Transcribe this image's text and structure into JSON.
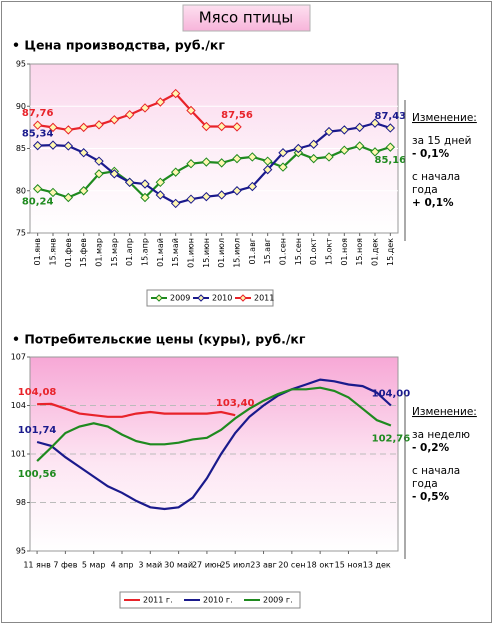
{
  "title": "Мясо птицы",
  "chart_data": [
    {
      "type": "line",
      "title": "• Цена производства, руб./кг",
      "categories": [
        "01.янв",
        "15.янв",
        "01.фев",
        "15.фев",
        "01.мар",
        "15.мар",
        "01.апр",
        "15.апр",
        "01.май",
        "15.май",
        "01.июн",
        "15.июн",
        "01.июл",
        "15.июл",
        "01.авг",
        "15.авг",
        "01.сен",
        "15.сен",
        "01.окт",
        "15.окт",
        "01.ноя",
        "15.ноя",
        "01.дек",
        "15.дек"
      ],
      "series": [
        {
          "name": "2009",
          "color": "#1f8a1f",
          "values": [
            80.24,
            79.8,
            79.2,
            80,
            82,
            82.3,
            81,
            79.2,
            81,
            82.2,
            83.2,
            83.4,
            83.3,
            83.8,
            84,
            83.5,
            82.8,
            84.5,
            83.8,
            84,
            84.8,
            85.3,
            84.6,
            85.16
          ],
          "value_labels": [
            "80,24",
            null,
            null,
            null,
            null,
            null,
            null,
            null,
            null,
            null,
            null,
            null,
            null,
            null,
            null,
            null,
            null,
            null,
            null,
            null,
            null,
            null,
            null,
            "85,16"
          ]
        },
        {
          "name": "2010",
          "color": "#1a1a8c",
          "values": [
            85.34,
            85.4,
            85.3,
            84.5,
            83.5,
            82,
            81,
            80.8,
            79.5,
            78.5,
            79,
            79.3,
            79.5,
            80,
            80.5,
            82.5,
            84.5,
            85,
            85.5,
            87,
            87.2,
            87.5,
            88,
            87.43
          ],
          "value_labels": [
            "85,34",
            null,
            null,
            null,
            null,
            null,
            null,
            null,
            null,
            null,
            null,
            null,
            null,
            null,
            null,
            null,
            null,
            null,
            null,
            null,
            null,
            null,
            null,
            "87,43"
          ]
        },
        {
          "name": "2011",
          "color": "#e8232a",
          "values": [
            87.76,
            87.5,
            87.2,
            87.5,
            87.8,
            88.4,
            89,
            89.8,
            90.5,
            91.5,
            89.5,
            87.6,
            87.6,
            87.56,
            null,
            null,
            null,
            null,
            null,
            null,
            null,
            null,
            null,
            null
          ],
          "value_labels": [
            "87,76",
            null,
            null,
            null,
            null,
            null,
            null,
            null,
            null,
            null,
            null,
            null,
            null,
            "87,56",
            null,
            null,
            null,
            null,
            null,
            null,
            null,
            null,
            null,
            null
          ]
        }
      ],
      "ylim": [
        75,
        95
      ],
      "yticks": [
        75,
        80,
        85,
        90,
        95
      ],
      "grid": true,
      "markers": true,
      "annotations": [
        [
          "Изменение:"
        ],
        [
          "за 15 дней",
          "- 0,1%"
        ],
        [
          "с начала",
          "года",
          "+ 0,1%"
        ]
      ]
    },
    {
      "type": "line",
      "title": "• Потребительские цены (куры), руб./кг",
      "categories": [
        "11 янв",
        null,
        "7 фев",
        null,
        "5 мар",
        null,
        "4 апр",
        null,
        "3 май",
        null,
        "30 май",
        null,
        "27 июн",
        null,
        "25 июл",
        null,
        "23 авг",
        null,
        "20 сен",
        null,
        "18 окт",
        null,
        "15 ноя",
        null,
        "13 дек",
        null
      ],
      "series": [
        {
          "name": "2011 г.",
          "color": "#e8232a",
          "values": [
            104.08,
            104.1,
            103.8,
            103.5,
            103.4,
            103.3,
            103.3,
            103.5,
            103.6,
            103.5,
            103.5,
            103.5,
            103.5,
            103.6,
            103.4,
            null,
            null,
            null,
            null,
            null,
            null,
            null,
            null,
            null,
            null,
            null
          ],
          "value_labels": [
            "104,08",
            null,
            null,
            null,
            null,
            null,
            null,
            null,
            null,
            null,
            null,
            null,
            null,
            null,
            "103,40",
            null,
            null,
            null,
            null,
            null,
            null,
            null,
            null,
            null,
            null,
            null
          ]
        },
        {
          "name": "2010 г.",
          "color": "#1a1a8c",
          "values": [
            101.74,
            101.5,
            100.8,
            100.2,
            99.6,
            99,
            98.6,
            98.1,
            97.7,
            97.6,
            97.7,
            98.3,
            99.5,
            101,
            102.3,
            103.3,
            104,
            104.6,
            105,
            105.3,
            105.6,
            105.5,
            105.3,
            105.2,
            104.8,
            104
          ],
          "value_labels": [
            "101,74",
            null,
            null,
            null,
            null,
            null,
            null,
            null,
            null,
            null,
            null,
            null,
            null,
            null,
            null,
            null,
            null,
            null,
            null,
            null,
            null,
            null,
            null,
            null,
            null,
            "104,00"
          ]
        },
        {
          "name": "2009 г.",
          "color": "#1f8a1f",
          "values": [
            100.56,
            101.4,
            102.3,
            102.7,
            102.9,
            102.7,
            102.2,
            101.8,
            101.6,
            101.6,
            101.7,
            101.9,
            102,
            102.5,
            103.2,
            103.8,
            104.3,
            104.7,
            105,
            105,
            105.1,
            104.9,
            104.5,
            103.8,
            103.1,
            102.76
          ],
          "value_labels": [
            "100,56",
            null,
            null,
            null,
            null,
            null,
            null,
            null,
            null,
            null,
            null,
            null,
            null,
            null,
            null,
            null,
            null,
            null,
            null,
            null,
            null,
            null,
            null,
            null,
            null,
            "102,76"
          ]
        }
      ],
      "ylim": [
        95,
        107
      ],
      "yticks": [
        95,
        98,
        101,
        104,
        107
      ],
      "grid": true,
      "markers": false,
      "annotations": [
        [
          "Изменение:"
        ],
        [
          "за неделю",
          " - 0,2%"
        ],
        [
          "с начала",
          "года",
          "- 0,5%"
        ]
      ]
    }
  ]
}
